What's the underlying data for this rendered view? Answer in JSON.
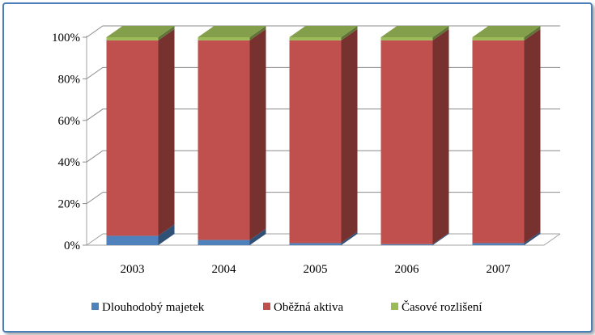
{
  "chart_data": {
    "type": "bar",
    "stacked": true,
    "percent_stacked": true,
    "three_d": true,
    "categories": [
      "2003",
      "2004",
      "2005",
      "2006",
      "2007"
    ],
    "series": [
      {
        "name": "Dlouhodobý majetek",
        "color": "#4f81bd",
        "values": [
          4.5,
          2.5,
          1.0,
          0.5,
          1.0
        ]
      },
      {
        "name": "Oběžná aktiva",
        "color": "#c0504d",
        "values": [
          94.0,
          96.0,
          97.5,
          98.0,
          97.5
        ]
      },
      {
        "name": "Časové rozlišení",
        "color": "#9bbb59",
        "values": [
          1.5,
          1.5,
          1.5,
          1.5,
          1.5
        ]
      }
    ],
    "y_ticks": [
      "0%",
      "20%",
      "40%",
      "60%",
      "80%",
      "100%"
    ],
    "ylim": [
      0,
      100
    ],
    "grid": true,
    "legend_position": "bottom"
  }
}
